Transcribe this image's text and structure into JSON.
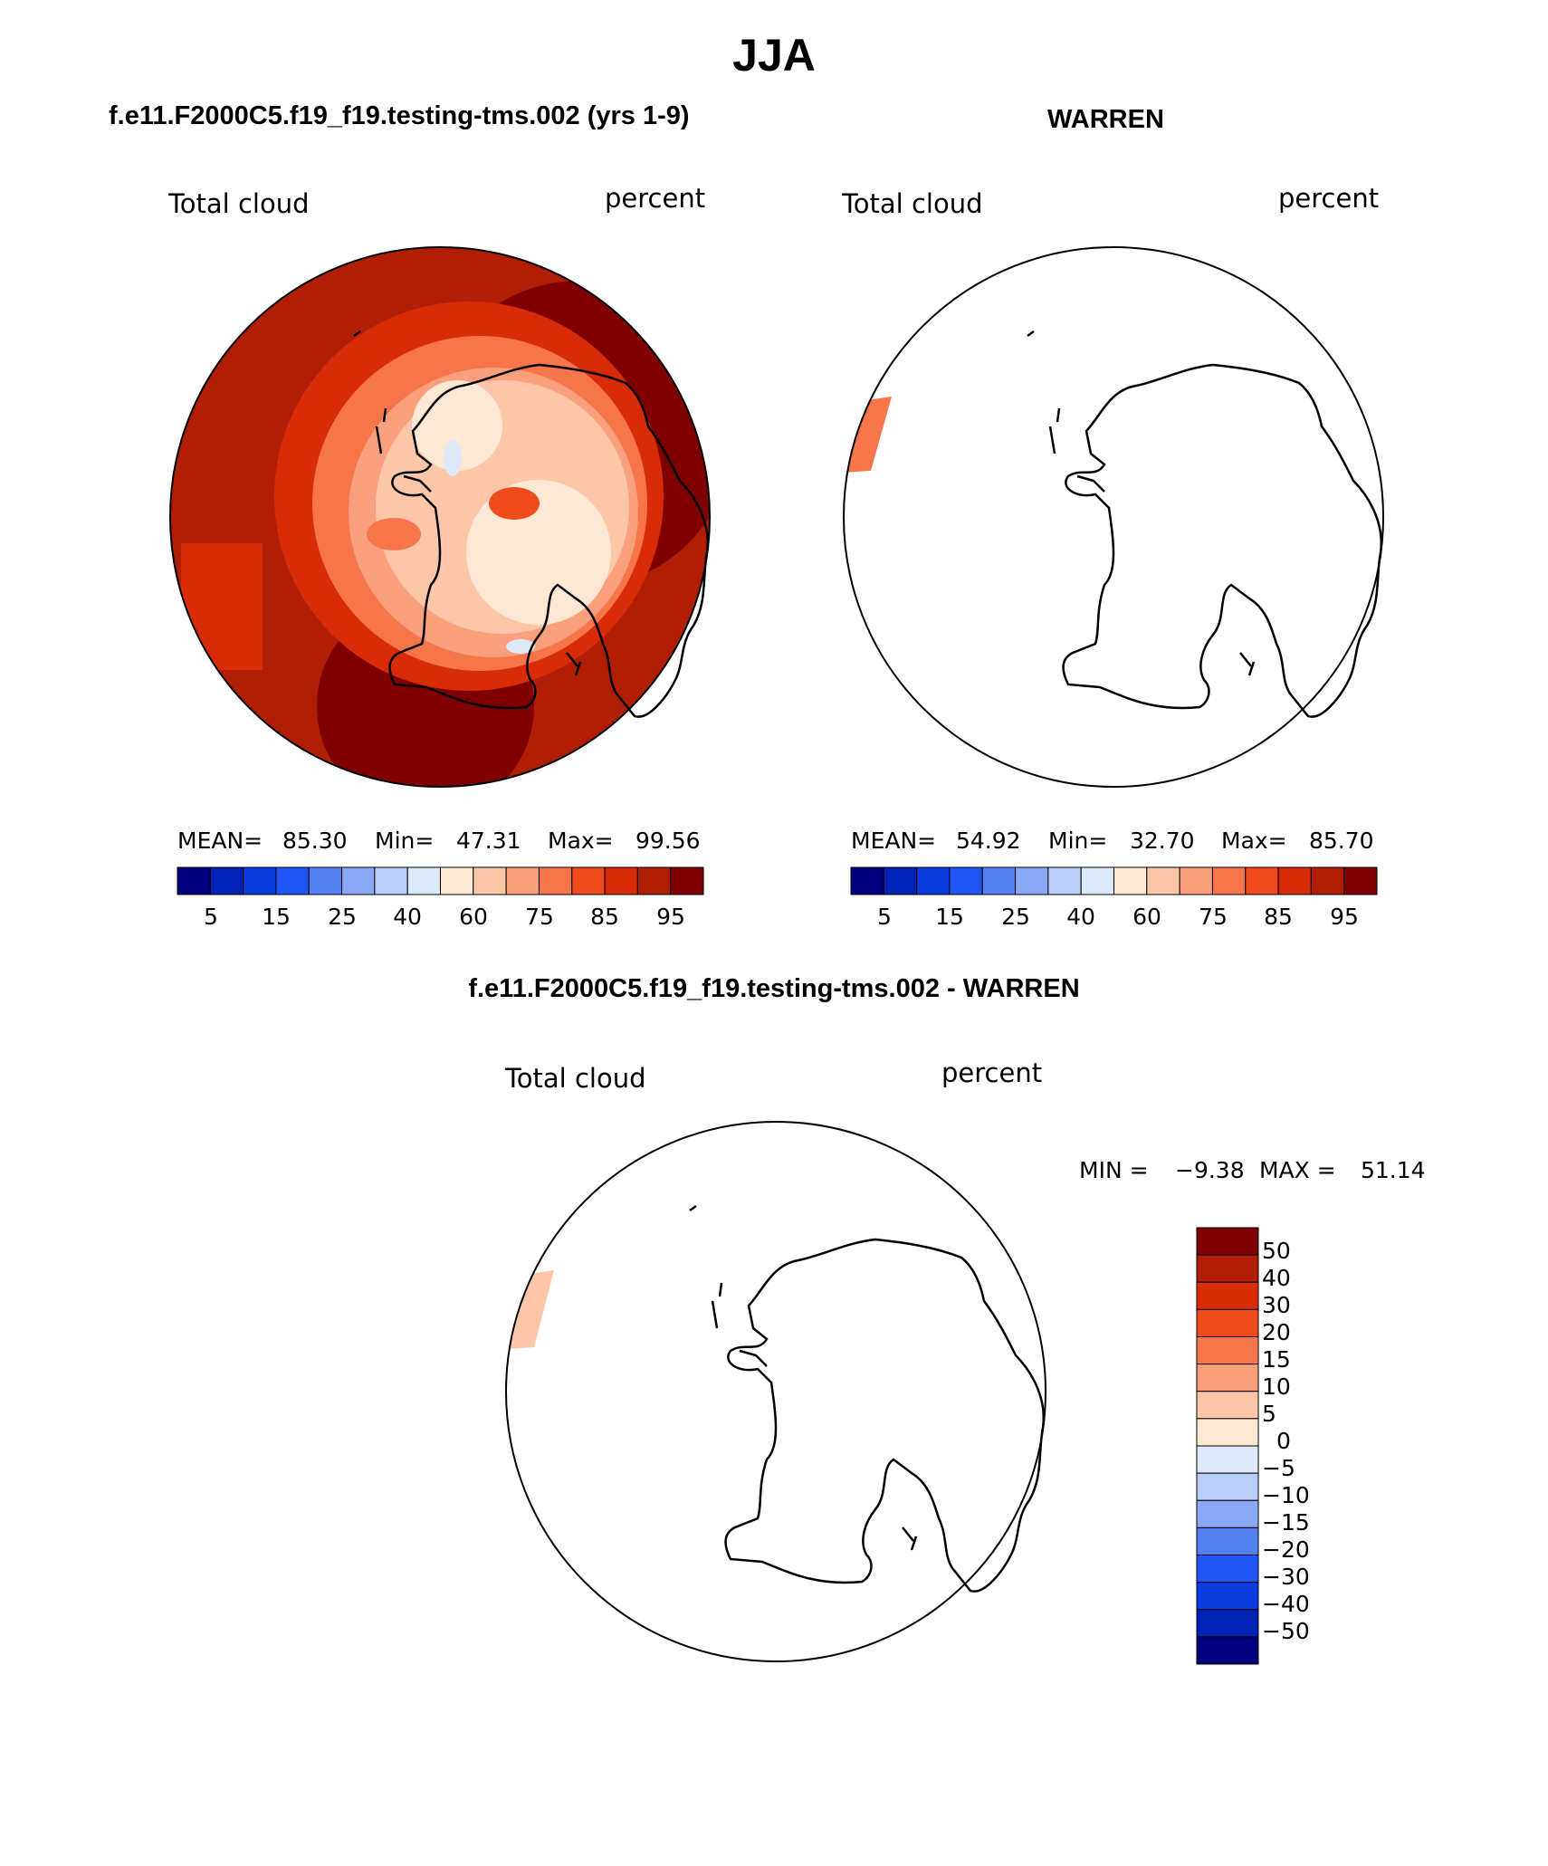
{
  "title": "JJA",
  "panels": [
    {
      "heading": "f.e11.F2000C5.f19_f19.testing-tms.002 (yrs 1-9)",
      "variable": "Total cloud",
      "units": "percent",
      "stats": {
        "mean_label": "MEAN=",
        "mean": "85.30",
        "min_label": "Min=",
        "min": "47.31",
        "max_label": "Max=",
        "max": "99.56"
      },
      "colorbar_labels": [
        "5",
        "15",
        "25",
        "40",
        "60",
        "75",
        "85",
        "95"
      ]
    },
    {
      "heading": "WARREN",
      "variable": "Total cloud",
      "units": "percent",
      "stats": {
        "mean_label": "MEAN=",
        "mean": "54.92",
        "min_label": "Min=",
        "min": "32.70",
        "max_label": "Max=",
        "max": "85.70"
      },
      "colorbar_labels": [
        "5",
        "15",
        "25",
        "40",
        "60",
        "75",
        "85",
        "95"
      ]
    },
    {
      "heading": "f.e11.F2000C5.f19_f19.testing-tms.002 - WARREN",
      "variable": "Total cloud",
      "units": "percent",
      "stats": {
        "min_label": "MIN =",
        "min": "−9.38",
        "max_label": "MAX =",
        "max": "51.14"
      },
      "colorbar_labels": [
        "50",
        "40",
        "30",
        "20",
        "15",
        "10",
        "5",
        "0",
        "−5",
        "−10",
        "−15",
        "−20",
        "−30",
        "−40",
        "−50"
      ]
    }
  ],
  "colors": {
    "abs_scale": [
      "#00007f",
      "#0022b5",
      "#0a3ce0",
      "#2255f5",
      "#5580f0",
      "#8aa8f5",
      "#b8cdf8",
      "#dde9f8",
      "#fde8d4",
      "#fcc7a8",
      "#fba07c",
      "#f7754a",
      "#ef4a1c",
      "#d82c08",
      "#b01e06",
      "#7f0000"
    ],
    "diff_scale": [
      "#7f0000",
      "#b01e06",
      "#d82c08",
      "#ef4a1c",
      "#f7754a",
      "#fba07c",
      "#fcc7a8",
      "#fde8d4",
      "#dde9f8",
      "#b8cdf8",
      "#8aa8f5",
      "#5580f0",
      "#2255f5",
      "#0a3ce0",
      "#0022b5",
      "#00007f"
    ]
  }
}
